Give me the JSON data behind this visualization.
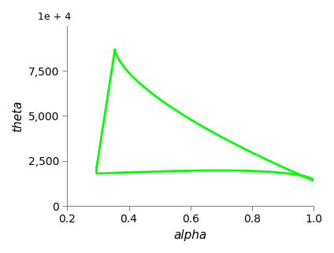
{
  "line_color": "#00ff00",
  "line_width": 2.0,
  "xlabel": "alpha",
  "ylabel": "theta",
  "xlim": [
    0.2,
    1.0
  ],
  "ylim": [
    0,
    10000
  ],
  "xticks": [
    0.2,
    0.4,
    0.6,
    0.8,
    1.0
  ],
  "yticks": [
    0,
    2500,
    5000,
    7500
  ],
  "background_color": "#ffffff",
  "label_fontsize": 11,
  "label_style": "italic",
  "offset_label": "1e + 4"
}
